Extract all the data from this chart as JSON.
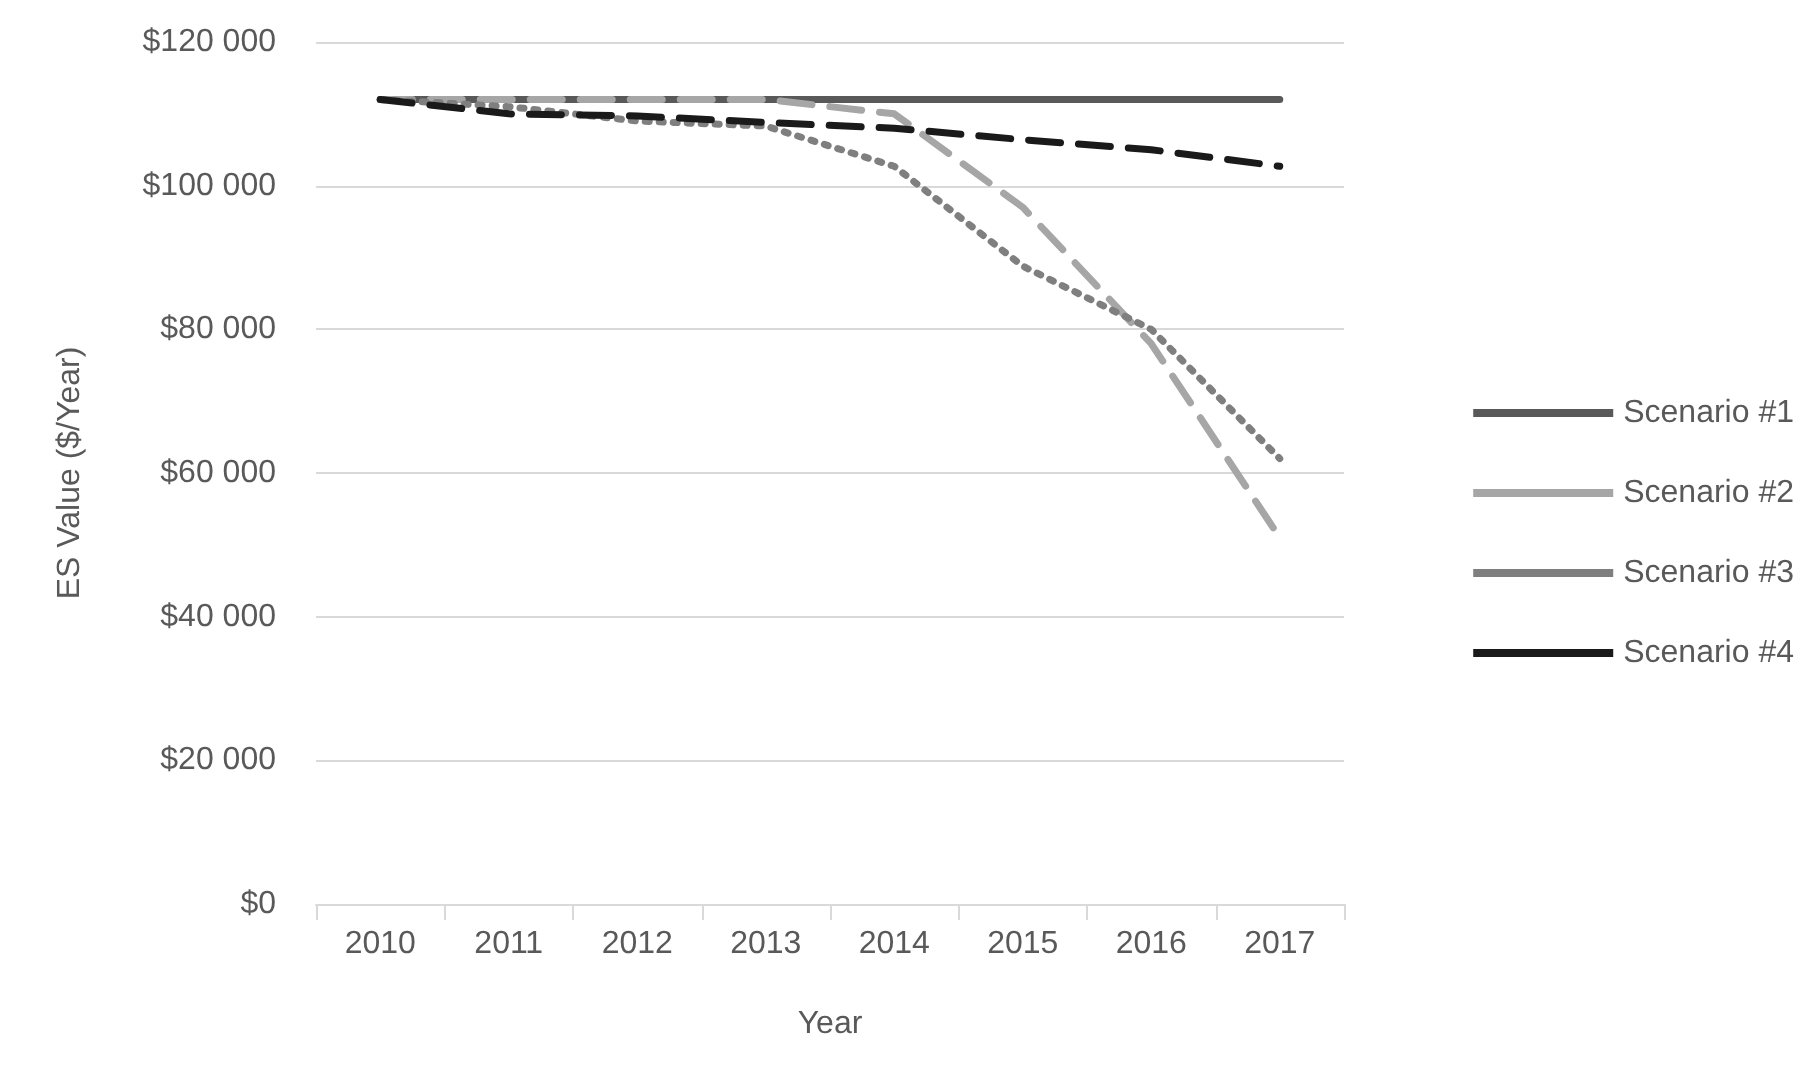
{
  "chart_data": {
    "type": "line",
    "xlabel": "Year",
    "ylabel": "ES Value ($/Year)",
    "categories": [
      "2010",
      "2011",
      "2012",
      "2013",
      "2014",
      "2015",
      "2016",
      "2017"
    ],
    "series": [
      {
        "name": "Scenario #1",
        "color": "#595959",
        "line_style": "solid",
        "values": [
          112000,
          112000,
          112000,
          112000,
          112000,
          112000,
          112000,
          112000
        ]
      },
      {
        "name": "Scenario #2",
        "color": "#a6a6a6",
        "line_style": "dashed",
        "values": [
          112000,
          112000,
          112000,
          112000,
          110000,
          97000,
          78000,
          51000
        ]
      },
      {
        "name": "Scenario #3",
        "color": "#7f7f7f",
        "line_style": "dotted",
        "values": [
          112000,
          111000,
          109000,
          108300,
          102700,
          88800,
          80000,
          62000
        ]
      },
      {
        "name": "Scenario #4",
        "color": "#1a1a1a",
        "line_style": "dashed",
        "values": [
          112000,
          110000,
          109700,
          108800,
          108000,
          106400,
          105000,
          102700
        ]
      }
    ],
    "ylim": [
      0,
      120000
    ],
    "yticks": [
      {
        "value": 0,
        "label": "$0"
      },
      {
        "value": 20000,
        "label": "$20 000"
      },
      {
        "value": 40000,
        "label": "$40 000"
      },
      {
        "value": 60000,
        "label": "$60 000"
      },
      {
        "value": 80000,
        "label": "$80 000"
      },
      {
        "value": 100000,
        "label": "$100 000"
      },
      {
        "value": 120000,
        "label": "$120 000"
      }
    ],
    "grid": "y",
    "legend": "right",
    "marker": "none"
  }
}
